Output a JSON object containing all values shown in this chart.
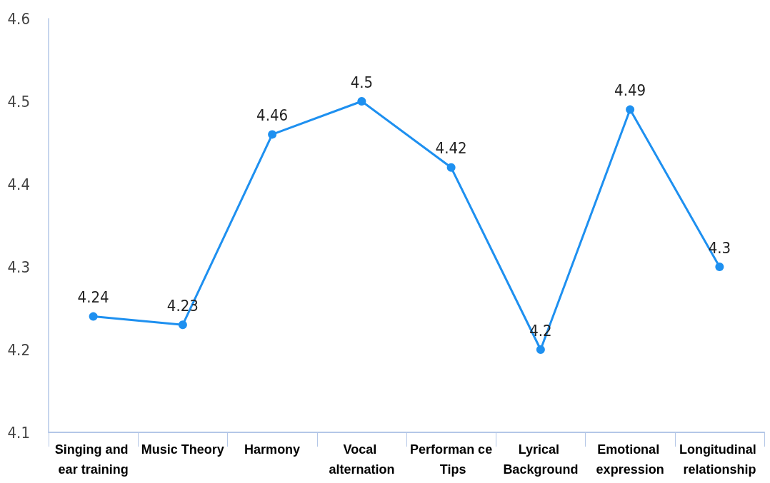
{
  "chart_data": {
    "type": "line",
    "categories": [
      "Singing and ear training",
      "Music Theory",
      "Harmony",
      "Vocal alternation",
      "Performan ce Tips",
      "Lyrical Background",
      "Emotional expression",
      "Longitudinal relationship"
    ],
    "values": [
      4.24,
      4.23,
      4.46,
      4.5,
      4.42,
      4.2,
      4.49,
      4.3
    ],
    "color": "#1e90f0",
    "ylim": [
      4.1,
      4.6
    ],
    "yticks": [
      4.1,
      4.2,
      4.3,
      4.4,
      4.5,
      4.6
    ],
    "grid": false,
    "data_labels": true,
    "marker": "circle",
    "line_style": "solid"
  }
}
